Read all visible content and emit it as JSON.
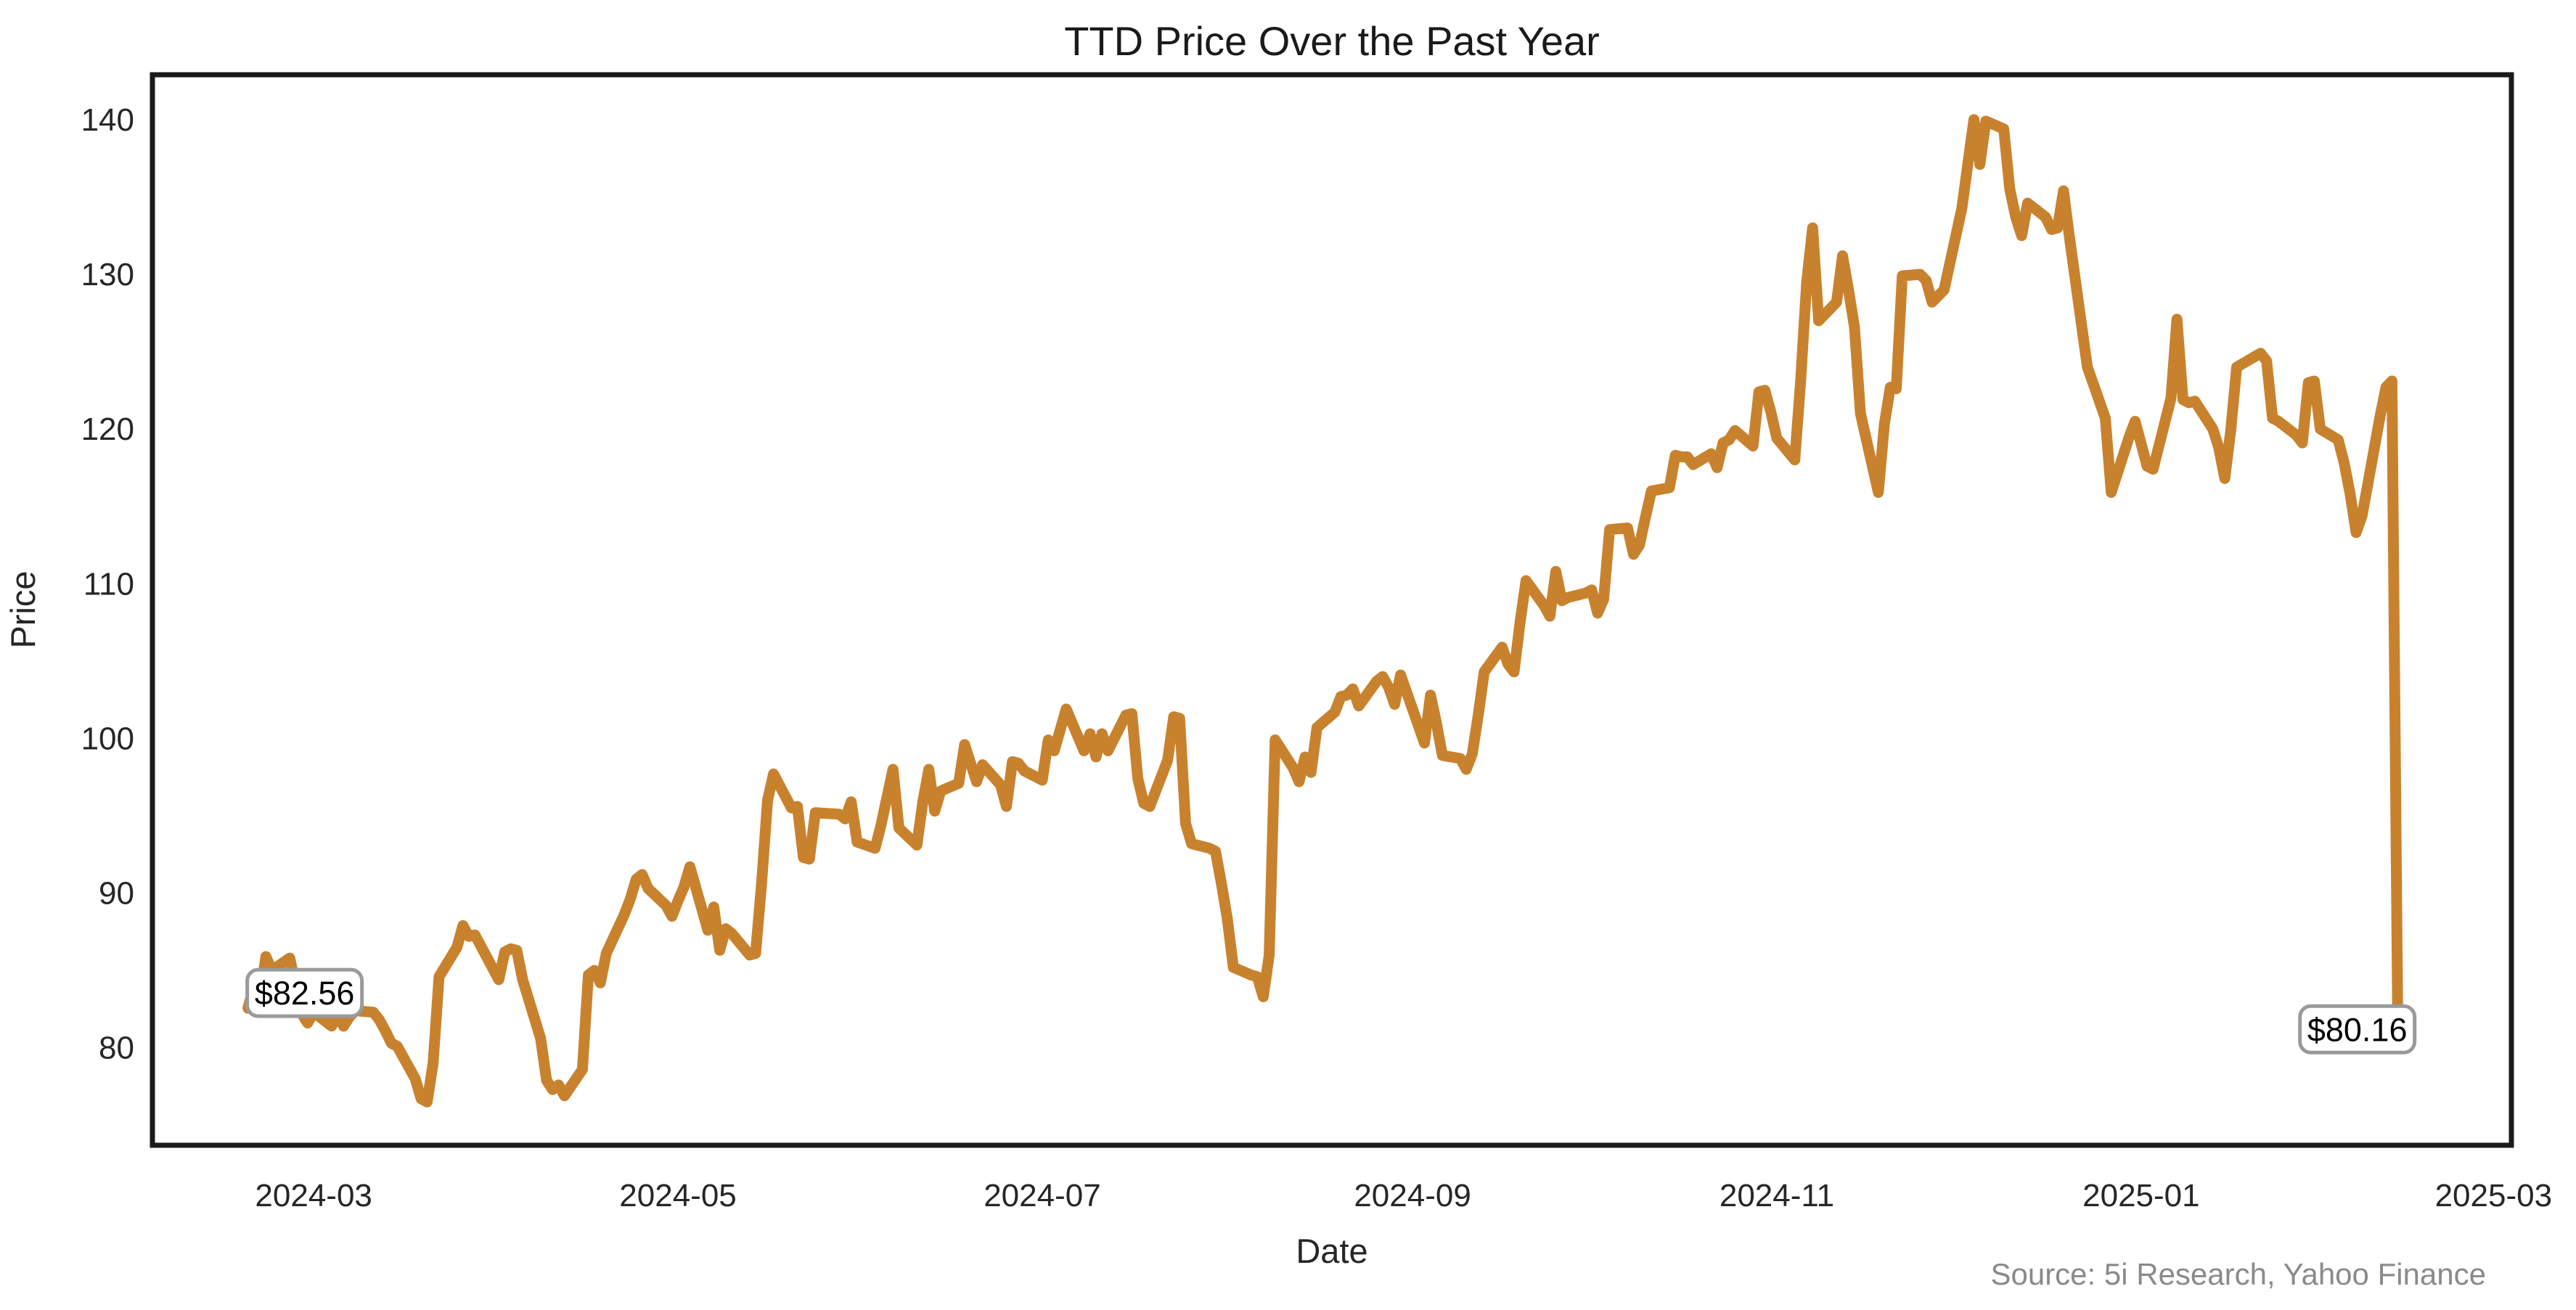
{
  "chart_data": {
    "type": "line",
    "title": "TTD Price Over the Past Year",
    "xlabel": "Date",
    "ylabel": "Price",
    "source_note": "Source: 5i Research, Yahoo Finance",
    "line_color": "#C8822E",
    "axis_color": "#1a1a1a",
    "tick_label_color": "#262626",
    "source_color": "#8a8a8a",
    "annotation_border_color": "#9a9a9a",
    "annotation_fill": "#ffffff",
    "background_color": "#ffffff",
    "grid": false,
    "legend": "none",
    "xlim": [
      "2024-02-03",
      "2025-03-04"
    ],
    "ylim": [
      73.7,
      142.9
    ],
    "y_ticks": [
      80,
      90,
      100,
      110,
      120,
      130,
      140
    ],
    "x_ticks": [
      {
        "date": "2024-03-01",
        "label": "2024-03"
      },
      {
        "date": "2024-05-01",
        "label": "2024-05"
      },
      {
        "date": "2024-07-01",
        "label": "2024-07"
      },
      {
        "date": "2024-09-01",
        "label": "2024-09"
      },
      {
        "date": "2024-11-01",
        "label": "2024-11"
      },
      {
        "date": "2025-01-01",
        "label": "2025-01"
      },
      {
        "date": "2025-03-01",
        "label": "2025-03"
      }
    ],
    "annotations": [
      {
        "text": "$82.56",
        "date": "2024-02-19",
        "value": 82.56,
        "offset": [
          78,
          -21
        ]
      },
      {
        "text": "$80.16",
        "date": "2025-02-13",
        "value": 80.16,
        "offset": [
          -56,
          -22
        ]
      }
    ],
    "series": [
      {
        "name": "TTD",
        "points": [
          [
            "2024-02-19",
            82.56
          ],
          [
            "2024-02-20",
            84.0
          ],
          [
            "2024-02-21",
            83.2
          ],
          [
            "2024-02-22",
            85.9
          ],
          [
            "2024-02-23",
            85.0
          ],
          [
            "2024-02-26",
            85.8
          ],
          [
            "2024-02-27",
            84.0
          ],
          [
            "2024-02-28",
            82.2
          ],
          [
            "2024-02-29",
            81.6
          ],
          [
            "2024-03-01",
            82.3
          ],
          [
            "2024-03-04",
            81.4
          ],
          [
            "2024-03-05",
            82.1
          ],
          [
            "2024-03-06",
            81.4
          ],
          [
            "2024-03-07",
            82.0
          ],
          [
            "2024-03-08",
            82.4
          ],
          [
            "2024-03-11",
            82.3
          ],
          [
            "2024-03-12",
            81.8
          ],
          [
            "2024-03-13",
            81.1
          ],
          [
            "2024-03-14",
            80.3
          ],
          [
            "2024-03-15",
            80.1
          ],
          [
            "2024-03-18",
            78.0
          ],
          [
            "2024-03-19",
            76.7
          ],
          [
            "2024-03-20",
            76.5
          ],
          [
            "2024-03-21",
            79.0
          ],
          [
            "2024-03-22",
            84.6
          ],
          [
            "2024-03-25",
            86.5
          ],
          [
            "2024-03-26",
            87.9
          ],
          [
            "2024-03-27",
            87.2
          ],
          [
            "2024-03-28",
            87.3
          ],
          [
            "2024-04-01",
            84.4
          ],
          [
            "2024-04-02",
            86.2
          ],
          [
            "2024-04-03",
            86.4
          ],
          [
            "2024-04-04",
            86.3
          ],
          [
            "2024-04-05",
            84.4
          ],
          [
            "2024-04-08",
            80.6
          ],
          [
            "2024-04-09",
            77.9
          ],
          [
            "2024-04-10",
            77.3
          ],
          [
            "2024-04-11",
            77.6
          ],
          [
            "2024-04-12",
            76.9
          ],
          [
            "2024-04-15",
            78.6
          ],
          [
            "2024-04-16",
            84.7
          ],
          [
            "2024-04-17",
            85.0
          ],
          [
            "2024-04-18",
            84.2
          ],
          [
            "2024-04-19",
            86.1
          ],
          [
            "2024-04-22",
            88.6
          ],
          [
            "2024-04-23",
            89.6
          ],
          [
            "2024-04-24",
            90.9
          ],
          [
            "2024-04-25",
            91.2
          ],
          [
            "2024-04-26",
            90.3
          ],
          [
            "2024-04-29",
            89.2
          ],
          [
            "2024-04-30",
            88.5
          ],
          [
            "2024-05-01",
            89.5
          ],
          [
            "2024-05-02",
            90.4
          ],
          [
            "2024-05-03",
            91.7
          ],
          [
            "2024-05-06",
            87.6
          ],
          [
            "2024-05-07",
            89.1
          ],
          [
            "2024-05-08",
            86.3
          ],
          [
            "2024-05-09",
            87.7
          ],
          [
            "2024-05-10",
            87.4
          ],
          [
            "2024-05-13",
            86.0
          ],
          [
            "2024-05-14",
            86.1
          ],
          [
            "2024-05-15",
            90.6
          ],
          [
            "2024-05-16",
            96.0
          ],
          [
            "2024-05-17",
            97.7
          ],
          [
            "2024-05-20",
            95.5
          ],
          [
            "2024-05-21",
            95.6
          ],
          [
            "2024-05-22",
            92.3
          ],
          [
            "2024-05-23",
            92.2
          ],
          [
            "2024-05-24",
            95.2
          ],
          [
            "2024-05-28",
            95.1
          ],
          [
            "2024-05-29",
            94.8
          ],
          [
            "2024-05-30",
            95.9
          ],
          [
            "2024-05-31",
            93.3
          ],
          [
            "2024-06-03",
            92.9
          ],
          [
            "2024-06-04",
            94.4
          ],
          [
            "2024-06-05",
            96.2
          ],
          [
            "2024-06-06",
            98.0
          ],
          [
            "2024-06-07",
            94.2
          ],
          [
            "2024-06-10",
            93.1
          ],
          [
            "2024-06-11",
            95.9
          ],
          [
            "2024-06-12",
            98.0
          ],
          [
            "2024-06-13",
            95.3
          ],
          [
            "2024-06-14",
            96.6
          ],
          [
            "2024-06-17",
            97.1
          ],
          [
            "2024-06-18",
            99.6
          ],
          [
            "2024-06-20",
            97.2
          ],
          [
            "2024-06-21",
            98.3
          ],
          [
            "2024-06-24",
            97.0
          ],
          [
            "2024-06-25",
            95.6
          ],
          [
            "2024-06-26",
            98.5
          ],
          [
            "2024-06-27",
            98.4
          ],
          [
            "2024-06-28",
            97.9
          ],
          [
            "2024-07-01",
            97.3
          ],
          [
            "2024-07-02",
            99.9
          ],
          [
            "2024-07-03",
            99.2
          ],
          [
            "2024-07-05",
            101.9
          ],
          [
            "2024-07-08",
            99.2
          ],
          [
            "2024-07-09",
            100.3
          ],
          [
            "2024-07-10",
            98.8
          ],
          [
            "2024-07-11",
            100.3
          ],
          [
            "2024-07-12",
            99.2
          ],
          [
            "2024-07-15",
            101.5
          ],
          [
            "2024-07-16",
            101.6
          ],
          [
            "2024-07-17",
            97.4
          ],
          [
            "2024-07-18",
            95.8
          ],
          [
            "2024-07-19",
            95.6
          ],
          [
            "2024-07-22",
            98.6
          ],
          [
            "2024-07-23",
            101.4
          ],
          [
            "2024-07-24",
            101.3
          ],
          [
            "2024-07-25",
            94.5
          ],
          [
            "2024-07-26",
            93.2
          ],
          [
            "2024-07-29",
            92.9
          ],
          [
            "2024-07-30",
            92.7
          ],
          [
            "2024-07-31",
            90.6
          ],
          [
            "2024-08-01",
            88.3
          ],
          [
            "2024-08-02",
            85.2
          ],
          [
            "2024-08-05",
            84.7
          ],
          [
            "2024-08-06",
            84.6
          ],
          [
            "2024-08-07",
            83.3
          ],
          [
            "2024-08-08",
            86.0
          ],
          [
            "2024-08-09",
            99.9
          ],
          [
            "2024-08-12",
            98.1
          ],
          [
            "2024-08-13",
            97.2
          ],
          [
            "2024-08-14",
            98.8
          ],
          [
            "2024-08-15",
            97.8
          ],
          [
            "2024-08-16",
            100.7
          ],
          [
            "2024-08-19",
            101.7
          ],
          [
            "2024-08-20",
            102.7
          ],
          [
            "2024-08-21",
            102.8
          ],
          [
            "2024-08-22",
            103.2
          ],
          [
            "2024-08-23",
            102.1
          ],
          [
            "2024-08-26",
            103.7
          ],
          [
            "2024-08-27",
            104.0
          ],
          [
            "2024-08-28",
            103.3
          ],
          [
            "2024-08-29",
            102.2
          ],
          [
            "2024-08-30",
            104.1
          ],
          [
            "2024-09-03",
            99.7
          ],
          [
            "2024-09-04",
            102.8
          ],
          [
            "2024-09-05",
            101.0
          ],
          [
            "2024-09-06",
            98.9
          ],
          [
            "2024-09-09",
            98.7
          ],
          [
            "2024-09-10",
            98.0
          ],
          [
            "2024-09-11",
            99.0
          ],
          [
            "2024-09-12",
            101.5
          ],
          [
            "2024-09-13",
            104.3
          ],
          [
            "2024-09-16",
            105.9
          ],
          [
            "2024-09-17",
            104.8
          ],
          [
            "2024-09-18",
            104.3
          ],
          [
            "2024-09-19",
            107.5
          ],
          [
            "2024-09-20",
            110.2
          ],
          [
            "2024-09-23",
            108.6
          ],
          [
            "2024-09-24",
            107.9
          ],
          [
            "2024-09-25",
            110.8
          ],
          [
            "2024-09-26",
            108.9
          ],
          [
            "2024-09-27",
            109.1
          ],
          [
            "2024-09-30",
            109.4
          ],
          [
            "2024-10-01",
            109.6
          ],
          [
            "2024-10-02",
            108.1
          ],
          [
            "2024-10-03",
            109.0
          ],
          [
            "2024-10-04",
            113.5
          ],
          [
            "2024-10-07",
            113.6
          ],
          [
            "2024-10-08",
            111.9
          ],
          [
            "2024-10-09",
            112.5
          ],
          [
            "2024-10-10",
            114.3
          ],
          [
            "2024-10-11",
            116.0
          ],
          [
            "2024-10-14",
            116.2
          ],
          [
            "2024-10-15",
            118.3
          ],
          [
            "2024-10-16",
            118.2
          ],
          [
            "2024-10-17",
            118.2
          ],
          [
            "2024-10-18",
            117.7
          ],
          [
            "2024-10-21",
            118.4
          ],
          [
            "2024-10-22",
            117.5
          ],
          [
            "2024-10-23",
            119.1
          ],
          [
            "2024-10-24",
            119.3
          ],
          [
            "2024-10-25",
            119.9
          ],
          [
            "2024-10-28",
            118.9
          ],
          [
            "2024-10-29",
            122.4
          ],
          [
            "2024-10-30",
            122.5
          ],
          [
            "2024-10-31",
            121.1
          ],
          [
            "2024-11-01",
            119.4
          ],
          [
            "2024-11-04",
            118.0
          ],
          [
            "2024-11-05",
            123.2
          ],
          [
            "2024-11-06",
            129.5
          ],
          [
            "2024-11-07",
            133.0
          ],
          [
            "2024-11-08",
            127.0
          ],
          [
            "2024-11-11",
            128.2
          ],
          [
            "2024-11-12",
            131.2
          ],
          [
            "2024-11-13",
            129.0
          ],
          [
            "2024-11-14",
            126.6
          ],
          [
            "2024-11-15",
            121.0
          ],
          [
            "2024-11-18",
            115.9
          ],
          [
            "2024-11-19",
            120.3
          ],
          [
            "2024-11-20",
            122.7
          ],
          [
            "2024-11-21",
            122.6
          ],
          [
            "2024-11-22",
            129.9
          ],
          [
            "2024-11-25",
            130.0
          ],
          [
            "2024-11-26",
            129.6
          ],
          [
            "2024-11-27",
            128.2
          ],
          [
            "2024-11-29",
            129.0
          ],
          [
            "2024-12-02",
            134.3
          ],
          [
            "2024-12-03",
            137.2
          ],
          [
            "2024-12-04",
            140.0
          ],
          [
            "2024-12-05",
            137.1
          ],
          [
            "2024-12-06",
            139.9
          ],
          [
            "2024-12-09",
            139.4
          ],
          [
            "2024-12-10",
            135.5
          ],
          [
            "2024-12-11",
            133.7
          ],
          [
            "2024-12-12",
            132.5
          ],
          [
            "2024-12-13",
            134.6
          ],
          [
            "2024-12-16",
            133.7
          ],
          [
            "2024-12-17",
            132.9
          ],
          [
            "2024-12-18",
            133.0
          ],
          [
            "2024-12-19",
            135.4
          ],
          [
            "2024-12-20",
            132.4
          ],
          [
            "2024-12-23",
            124.0
          ],
          [
            "2024-12-24",
            122.9
          ],
          [
            "2024-12-26",
            120.7
          ],
          [
            "2024-12-27",
            115.9
          ],
          [
            "2024-12-30",
            119.5
          ],
          [
            "2024-12-31",
            120.5
          ],
          [
            "2025-01-02",
            117.6
          ],
          [
            "2025-01-03",
            117.4
          ],
          [
            "2025-01-06",
            122.0
          ],
          [
            "2025-01-07",
            127.1
          ],
          [
            "2025-01-08",
            121.9
          ],
          [
            "2025-01-09",
            121.7
          ],
          [
            "2025-01-10",
            121.8
          ],
          [
            "2025-01-13",
            120.0
          ],
          [
            "2025-01-14",
            118.8
          ],
          [
            "2025-01-15",
            116.8
          ],
          [
            "2025-01-16",
            119.9
          ],
          [
            "2025-01-17",
            124.0
          ],
          [
            "2025-01-21",
            124.9
          ],
          [
            "2025-01-22",
            124.4
          ],
          [
            "2025-01-23",
            120.7
          ],
          [
            "2025-01-24",
            120.5
          ],
          [
            "2025-01-27",
            119.6
          ],
          [
            "2025-01-28",
            119.1
          ],
          [
            "2025-01-29",
            123.0
          ],
          [
            "2025-01-30",
            123.1
          ],
          [
            "2025-01-31",
            120.0
          ],
          [
            "2025-02-03",
            119.3
          ],
          [
            "2025-02-04",
            117.8
          ],
          [
            "2025-02-05",
            115.8
          ],
          [
            "2025-02-06",
            113.3
          ],
          [
            "2025-02-07",
            114.4
          ],
          [
            "2025-02-10",
            120.8
          ],
          [
            "2025-02-11",
            122.7
          ],
          [
            "2025-02-12",
            123.1
          ],
          [
            "2025-02-13",
            80.16
          ]
        ]
      }
    ]
  }
}
